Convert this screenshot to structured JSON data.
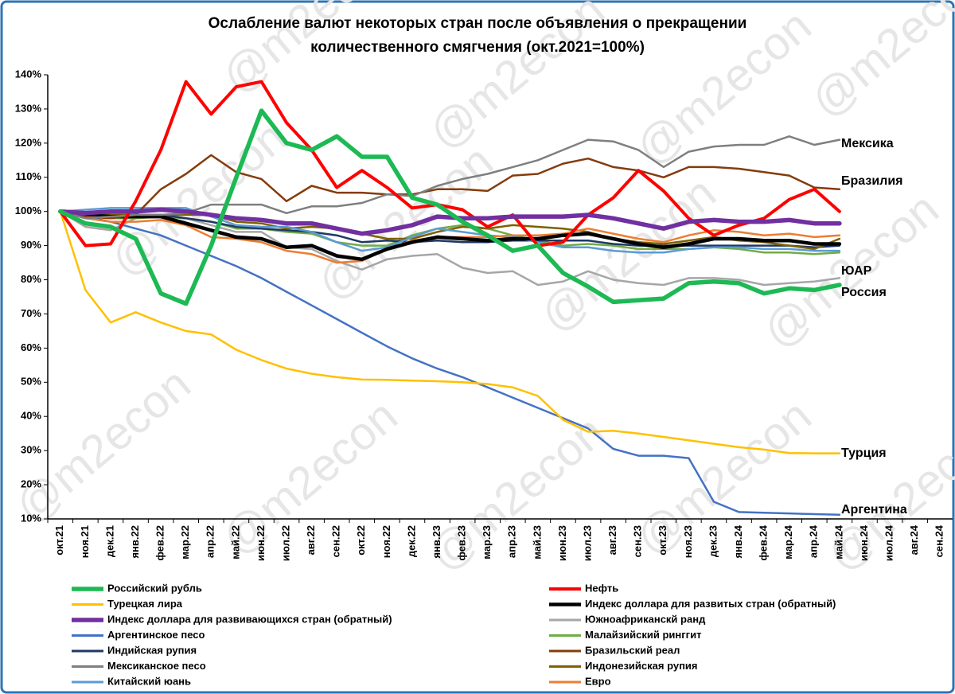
{
  "chart_data": {
    "type": "line",
    "title": [
      "Ослабление валют некоторых стран после объявления о прекращении",
      "количественного смягчения  (окт.2021=100%)"
    ],
    "watermark": "@m2econ",
    "categories": [
      "окт.21",
      "ноя.21",
      "дек.21",
      "янв.22",
      "фев.22",
      "мар.22",
      "апр.22",
      "май.22",
      "июн.22",
      "июл.22",
      "авг.22",
      "сен.22",
      "окт.22",
      "ноя.22",
      "дек.22",
      "янв.23",
      "фев.23",
      "мар.23",
      "апр.23",
      "май.23",
      "июн.23",
      "июл.23",
      "авг.23",
      "сен.23",
      "окт.23",
      "ноя.23",
      "дек.23",
      "янв.24",
      "фев.24",
      "мар.24",
      "апр.24",
      "май.24",
      "июн.24",
      "июл.24",
      "авг.24",
      "сен.24"
    ],
    "ylim": [
      10,
      140
    ],
    "yticks": [
      {
        "value": 10,
        "label": "10%"
      },
      {
        "value": 20,
        "label": "20%"
      },
      {
        "value": 30,
        "label": "30%"
      },
      {
        "value": 40,
        "label": "40%"
      },
      {
        "value": 50,
        "label": "50%"
      },
      {
        "value": 60,
        "label": "60%"
      },
      {
        "value": 70,
        "label": "70%"
      },
      {
        "value": 80,
        "label": "80%"
      },
      {
        "value": 90,
        "label": "90%"
      },
      {
        "value": 100,
        "label": "100%"
      },
      {
        "value": 110,
        "label": "110%"
      },
      {
        "value": 120,
        "label": "120%"
      },
      {
        "value": 130,
        "label": "130%"
      },
      {
        "value": 140,
        "label": "140%"
      }
    ],
    "grid": false,
    "series": [
      {
        "name": "Российский рубль",
        "color": "#1db954",
        "values": [
          100,
          96.5,
          95.5,
          92,
          76,
          73,
          90,
          110,
          129.5,
          120,
          118,
          122,
          116,
          116,
          104,
          102,
          97,
          93,
          88.5,
          90,
          82,
          78,
          73.5,
          74,
          74.5,
          79,
          79.5,
          79,
          76,
          77.5,
          77,
          78.5,
          null,
          null,
          null,
          null
        ]
      },
      {
        "name": "Нефть",
        "color": "#ff0000",
        "values": [
          100,
          90,
          90.5,
          103,
          118,
          138,
          128.5,
          136.5,
          138,
          126,
          118,
          107,
          112,
          107,
          101,
          102,
          100.5,
          95.5,
          99,
          90,
          91,
          99,
          104,
          112,
          106,
          98,
          93,
          96,
          98,
          103.5,
          106.5,
          100,
          null,
          null,
          null,
          null
        ]
      },
      {
        "name": "Турецкая лира",
        "color": "#ffc000",
        "values": [
          100,
          77,
          67.5,
          70.5,
          67.5,
          65,
          64,
          59.5,
          56.5,
          54,
          52.5,
          51.5,
          50.8,
          50.7,
          50.5,
          50.3,
          50,
          49.5,
          48.5,
          46,
          39,
          35.5,
          35.8,
          35,
          34,
          33,
          32,
          31,
          30.3,
          29.3,
          29.2,
          29.2,
          null,
          null,
          null,
          null
        ]
      },
      {
        "name": "Индекс доллара для развитых стран (обратный)",
        "color": "#000000",
        "values": [
          100,
          99,
          98.5,
          98.5,
          98.5,
          96.5,
          94.5,
          92.5,
          92,
          89.5,
          90,
          87,
          86,
          89,
          91,
          92.5,
          92,
          91.5,
          92,
          92,
          93,
          93.5,
          92,
          90.5,
          89.5,
          90.5,
          92,
          92,
          91.5,
          91.5,
          90.5,
          90.5,
          null,
          null,
          null,
          null
        ]
      },
      {
        "name": "Индекс доллара для развивающихся стран (обратный)",
        "color": "#7030a0",
        "values": [
          100,
          99.5,
          100,
          100,
          100.5,
          100,
          99,
          98,
          97.5,
          96.5,
          96.5,
          95,
          93.5,
          94.5,
          96,
          98.5,
          98,
          98,
          98.5,
          98.5,
          98.5,
          99,
          98,
          96.5,
          95,
          97,
          97.5,
          97,
          97,
          97.5,
          96.5,
          96.5,
          null,
          null,
          null,
          null
        ]
      },
      {
        "name": "Южноафриканскй ранд",
        "color": "#a6a6a6",
        "values": [
          100,
          95.5,
          94.5,
          98,
          98.5,
          98,
          96,
          94,
          94,
          89.5,
          89,
          85.5,
          83,
          86,
          87,
          87.5,
          83.5,
          82,
          82.5,
          78.5,
          79.5,
          82.5,
          80,
          79,
          78.5,
          80.5,
          80.5,
          80,
          78.5,
          79,
          79.5,
          80.5,
          null,
          null,
          null,
          null
        ]
      },
      {
        "name": "Аргентинское песо",
        "color": "#4472c4",
        "values": [
          100,
          98.5,
          97,
          95,
          93,
          90,
          87,
          84,
          80.5,
          76.5,
          72.5,
          68.5,
          64.5,
          60.5,
          57,
          54,
          51.5,
          48.5,
          45.5,
          42.5,
          39.5,
          36.5,
          30.5,
          28.5,
          28.5,
          27.8,
          15,
          12,
          11.8,
          11.6,
          11.4,
          11.2,
          null,
          null,
          null,
          null
        ]
      },
      {
        "name": "Малайзийский ринггит",
        "color": "#70ad47",
        "values": [
          100,
          99,
          98,
          98,
          98.5,
          98,
          97,
          95,
          95,
          94,
          93.5,
          91,
          90,
          90,
          93,
          95,
          96,
          95,
          93,
          91.5,
          90,
          90.5,
          90,
          89,
          89,
          89,
          89.5,
          89,
          88,
          88,
          87.5,
          88,
          null,
          null,
          null,
          null
        ]
      },
      {
        "name": "Индийская рупия",
        "color": "#1f3864",
        "values": [
          100,
          99.5,
          99,
          99,
          99,
          98,
          97,
          95.5,
          95,
          94.5,
          94,
          93,
          91,
          91.5,
          91,
          91.5,
          91,
          91,
          91.5,
          91.5,
          91.5,
          91.5,
          90.5,
          90,
          90,
          90,
          90,
          90,
          90,
          90,
          89.5,
          90,
          null,
          null,
          null,
          null
        ]
      },
      {
        "name": "Бразильский реал",
        "color": "#843c0c",
        "values": [
          100,
          98.5,
          98,
          99,
          106.5,
          111,
          116.5,
          111.5,
          109.5,
          103,
          107.5,
          105.5,
          105.5,
          105,
          105,
          106.5,
          106.5,
          106,
          110.5,
          111,
          114,
          115.5,
          113,
          112,
          110,
          113,
          113,
          112.5,
          111.5,
          110.5,
          107,
          106.5,
          null,
          null,
          null,
          null
        ]
      },
      {
        "name": "Мексиканское песо",
        "color": "#7f7f7f",
        "values": [
          100,
          98,
          98.5,
          99,
          99,
          99.5,
          102,
          102,
          102,
          99.5,
          101.5,
          101.5,
          102.5,
          105,
          104.5,
          107.5,
          109.5,
          111,
          113,
          115,
          118,
          121,
          120.5,
          118,
          113,
          117.5,
          119,
          119.5,
          119.5,
          122,
          119.5,
          121,
          null,
          null,
          null,
          null
        ]
      },
      {
        "name": "Индонезийская рупия",
        "color": "#7f6000",
        "values": [
          100,
          99.5,
          99,
          99,
          99,
          99,
          99,
          97,
          96.5,
          95,
          95.5,
          95,
          93.5,
          92,
          92,
          94,
          95.5,
          95,
          96,
          95.5,
          95,
          94,
          92,
          91,
          90.5,
          91.5,
          92.5,
          91.5,
          91,
          90,
          89,
          92,
          null,
          null,
          null,
          null
        ]
      },
      {
        "name": "Китайский юань",
        "color": "#5b9bd5",
        "values": [
          100,
          100.5,
          101,
          101,
          101,
          101,
          98.5,
          96,
          95.5,
          95.5,
          94,
          91,
          88.5,
          89.5,
          92.5,
          95,
          94,
          93,
          92.5,
          91,
          89.5,
          89.5,
          88.5,
          88,
          88,
          89,
          89.5,
          89.5,
          89,
          89,
          88.5,
          88.5,
          null,
          null,
          null,
          null
        ]
      },
      {
        "name": "Евро",
        "color": "#ed7d31",
        "values": [
          100,
          98,
          97,
          97,
          97.5,
          96,
          92.5,
          92,
          91,
          88.5,
          87.5,
          85,
          85.5,
          89,
          91.5,
          92.5,
          92.5,
          92.5,
          93,
          93,
          93.5,
          95,
          93.5,
          92,
          91,
          93,
          94.5,
          94,
          93,
          93.5,
          92.5,
          93,
          null,
          null,
          null,
          null
        ]
      }
    ],
    "annotations": [
      "Мексика",
      "Бразилия",
      "ЮАР",
      "Россия",
      "Турция",
      "Аргентина"
    ]
  }
}
